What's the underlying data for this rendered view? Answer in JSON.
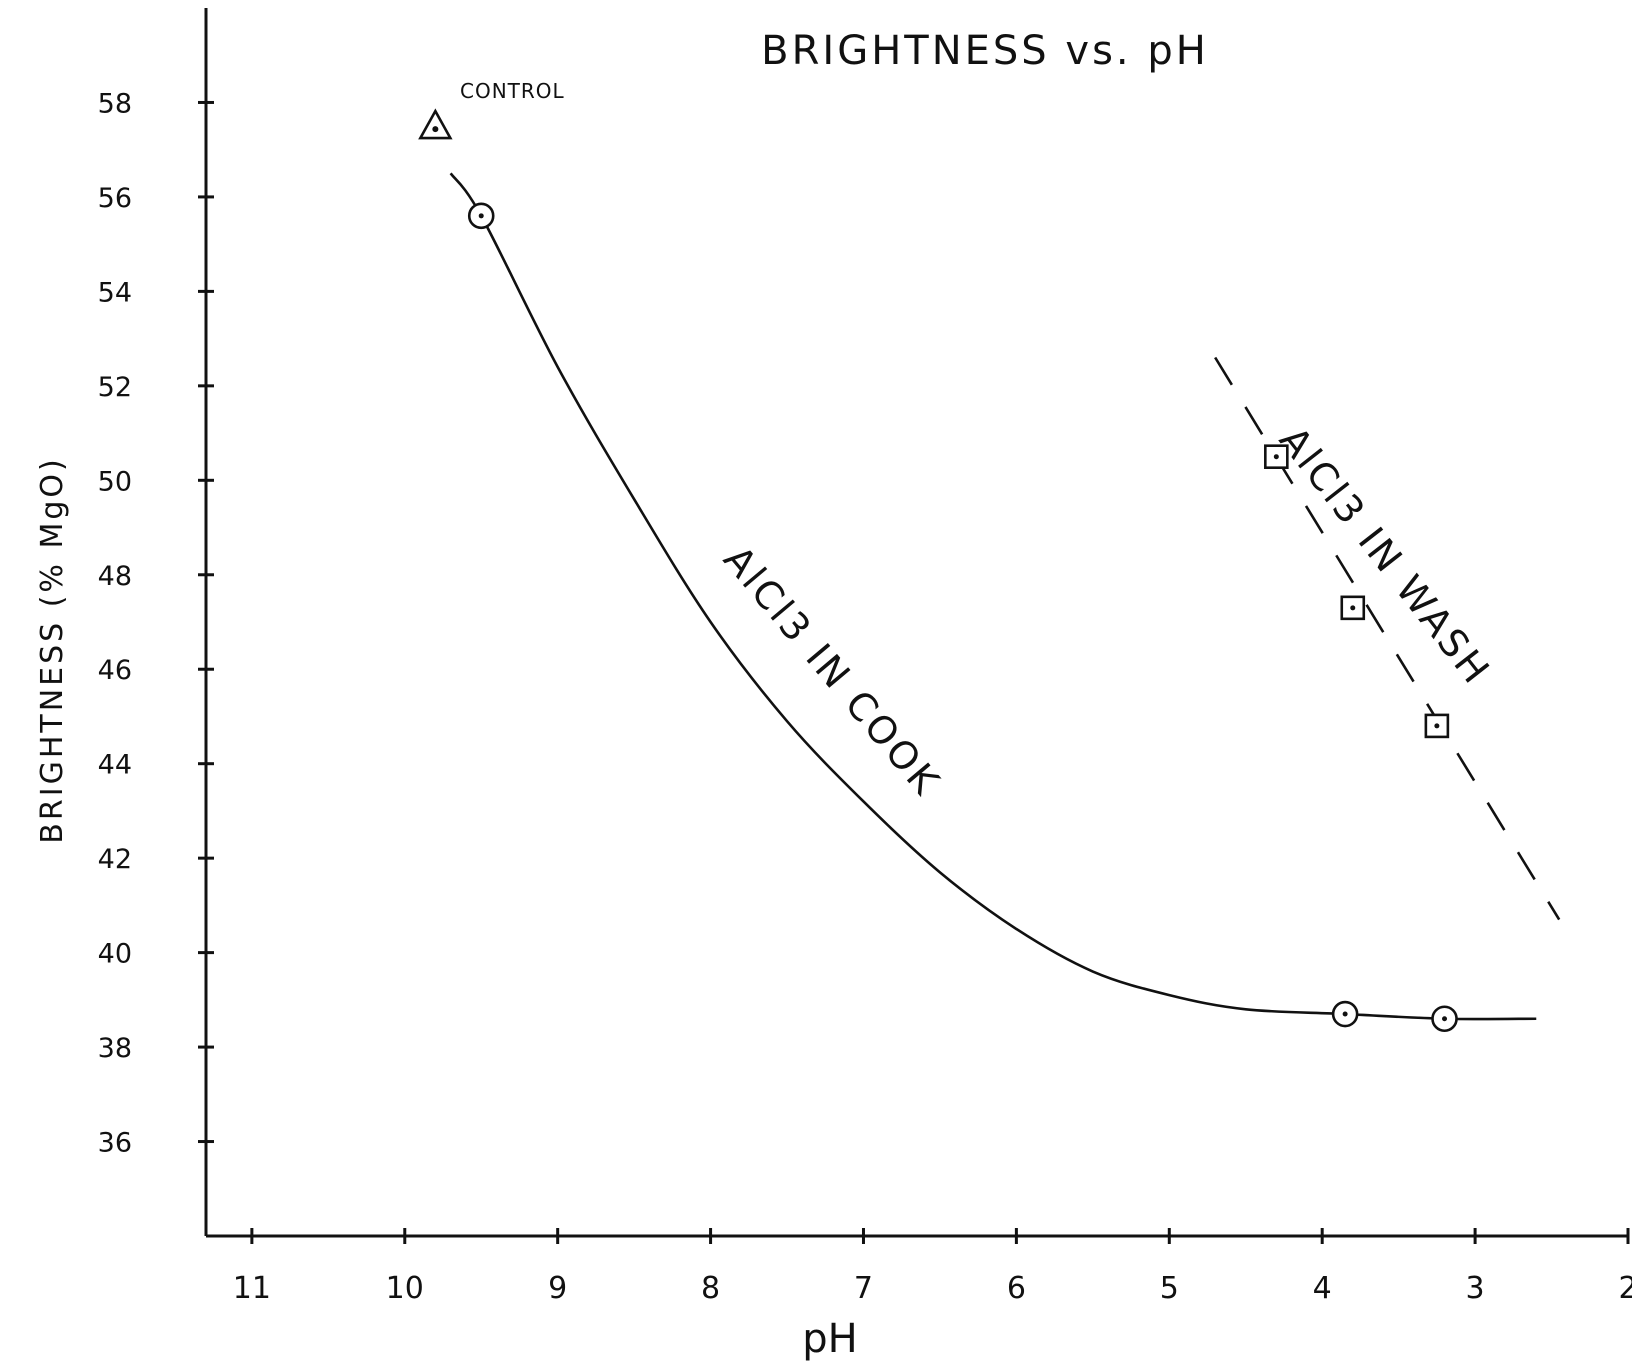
{
  "chart_data": {
    "type": "line",
    "title": "BRIGHTNESS vs. pH",
    "xlabel": "pH",
    "ylabel": "BRIGHTNESS (% MgO)",
    "x_reversed": true,
    "xlim": [
      11.3,
      2.0
    ],
    "ylim": [
      34,
      60
    ],
    "x_ticks": [
      11,
      10,
      9,
      8,
      7,
      6,
      5,
      4,
      3,
      2
    ],
    "y_ticks": [
      58,
      56,
      54,
      52,
      50,
      48,
      46,
      44,
      42,
      40,
      38,
      36
    ],
    "grid": false,
    "legend": "none",
    "series": [
      {
        "name": "AlCl3 IN COOK",
        "marker": "circle",
        "line_style": "solid",
        "points": [
          {
            "x": 9.5,
            "y": 55.6
          },
          {
            "x": 3.85,
            "y": 38.7
          },
          {
            "x": 3.2,
            "y": 38.6
          }
        ],
        "curve": [
          [
            9.7,
            56.5
          ],
          [
            9.5,
            55.6
          ],
          [
            9.0,
            52.4
          ],
          [
            8.5,
            49.6
          ],
          [
            8.0,
            47.0
          ],
          [
            7.5,
            44.9
          ],
          [
            7.0,
            43.2
          ],
          [
            6.5,
            41.7
          ],
          [
            6.0,
            40.5
          ],
          [
            5.5,
            39.6
          ],
          [
            5.0,
            39.1
          ],
          [
            4.5,
            38.8
          ],
          [
            3.85,
            38.7
          ],
          [
            3.2,
            38.6
          ],
          [
            2.6,
            38.6
          ]
        ]
      },
      {
        "name": "AlCl3 IN WASH",
        "marker": "square",
        "line_style": "dashed",
        "points": [
          {
            "x": 4.3,
            "y": 50.5
          },
          {
            "x": 3.8,
            "y": 47.3
          },
          {
            "x": 3.25,
            "y": 44.8
          }
        ],
        "curve": [
          [
            4.7,
            52.6
          ],
          [
            2.45,
            40.7
          ]
        ]
      },
      {
        "name": "CONTROL",
        "marker": "triangle",
        "line_style": "none",
        "points": [
          {
            "x": 9.8,
            "y": 57.5
          }
        ]
      }
    ],
    "annotations": [
      "CONTROL",
      "AlCl3 IN COOK",
      "AlCl3 IN WASH"
    ]
  }
}
